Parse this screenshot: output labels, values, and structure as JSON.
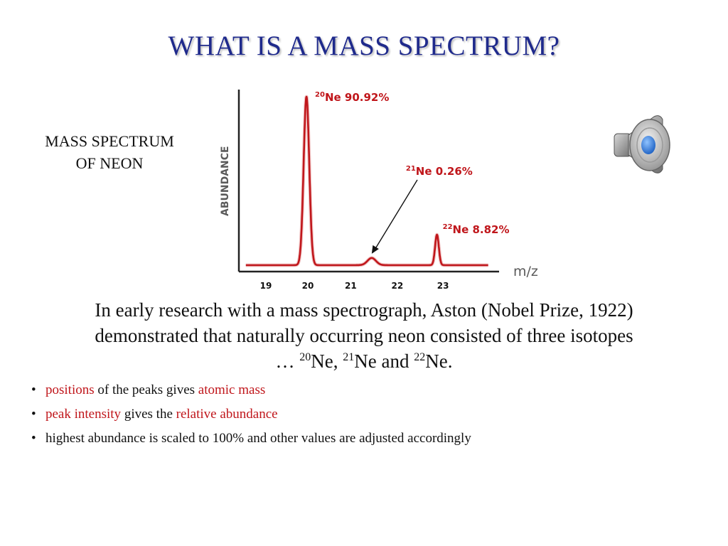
{
  "slide": {
    "title": "WHAT IS A MASS SPECTRUM?",
    "side_label": [
      "MASS SPECTRUM",
      "OF NEON"
    ],
    "speaker_icon": "speaker-audio-icon",
    "body": {
      "line1": "In early research with a mass spectrograph, Aston (Nobel Prize, 1922)",
      "line2": "demonstrated that naturally occurring neon consisted of three isotopes",
      "line3_prefix": "… ",
      "iso1_mass": "20",
      "iso1_rest": "Ne,  ",
      "iso2_mass": "21",
      "iso2_rest": "Ne and  ",
      "iso3_mass": "22",
      "iso3_rest": "Ne."
    },
    "bullets": [
      {
        "red1": "positions",
        "text1": " of the peaks gives ",
        "red2": "atomic mass"
      },
      {
        "red1": "peak intensity",
        "text1": " gives the ",
        "red2": "relative abundance"
      },
      {
        "red1": "",
        "text1": "highest abundance is scaled to 100% and other values are adjusted accordingly",
        "red2": ""
      }
    ]
  },
  "colors": {
    "title": "#1f2a8c",
    "peak_line": "#c0161b",
    "highlight_text": "#c0161b",
    "axis": "#222222",
    "axis_label": "#5a5a5a",
    "speaker_blue": "#2f7de0"
  },
  "chart_data": {
    "type": "line",
    "title": "",
    "xlabel": "m/z",
    "ylabel": "ABUNDANCE",
    "x_ticks": [
      19,
      20,
      21,
      22,
      23
    ],
    "xlim": [
      18.6,
      24.0
    ],
    "ylim": [
      0,
      100
    ],
    "grid": false,
    "peaks": [
      {
        "mass_number": "20",
        "symbol": "Ne",
        "x": 20.05,
        "abundance": 90.92,
        "label_value": "90.92%",
        "visual_height": 94,
        "width": 0.06
      },
      {
        "mass_number": "21",
        "symbol": "Ne",
        "x": 21.45,
        "abundance": 0.26,
        "label_value": "0.26%",
        "visual_height": 4,
        "width": 0.09
      },
      {
        "mass_number": "22",
        "symbol": "Ne",
        "x": 22.85,
        "abundance": 8.82,
        "label_value": "8.82%",
        "visual_height": 17,
        "width": 0.04
      }
    ],
    "baseline": 2
  }
}
